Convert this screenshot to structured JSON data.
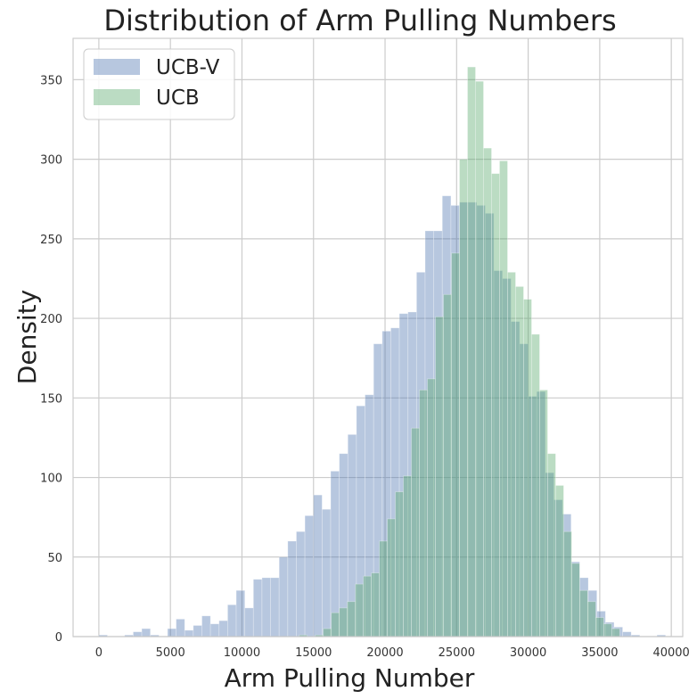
{
  "chart_data": {
    "type": "bar",
    "title": "Distribution of Arm Pulling Numbers",
    "xlabel": "Arm Pulling Number",
    "ylabel": "Density",
    "xlim": [
      -1800,
      40800
    ],
    "ylim": [
      0,
      376
    ],
    "x_ticks": [
      0,
      5000,
      10000,
      15000,
      20000,
      25000,
      30000,
      35000,
      40000
    ],
    "x_tick_labels": [
      "0",
      "5000",
      "10000",
      "15000",
      "20000",
      "25000",
      "30000",
      "35000",
      "40000"
    ],
    "y_ticks": [
      0,
      50,
      100,
      150,
      200,
      250,
      300,
      350
    ],
    "y_tick_labels": [
      "0",
      "50",
      "100",
      "150",
      "200",
      "250",
      "300",
      "350"
    ],
    "grid": true,
    "legend_position": "top-left",
    "series": [
      {
        "name": "UCB-V",
        "color": "#4c72b0",
        "alpha": 0.4,
        "bin_width": 600,
        "bins": [
          [
            0,
            1
          ],
          [
            600,
            0
          ],
          [
            1200,
            0
          ],
          [
            1800,
            1
          ],
          [
            2400,
            3
          ],
          [
            3000,
            5
          ],
          [
            3600,
            1
          ],
          [
            4200,
            0
          ],
          [
            4800,
            5
          ],
          [
            5400,
            11
          ],
          [
            6000,
            4
          ],
          [
            6600,
            7
          ],
          [
            7200,
            13
          ],
          [
            7800,
            8
          ],
          [
            8400,
            10
          ],
          [
            9000,
            20
          ],
          [
            9600,
            29
          ],
          [
            10200,
            18
          ],
          [
            10800,
            36
          ],
          [
            11400,
            37
          ],
          [
            12000,
            37
          ],
          [
            12600,
            50
          ],
          [
            13200,
            60
          ],
          [
            13800,
            66
          ],
          [
            14400,
            76
          ],
          [
            15000,
            89
          ],
          [
            15600,
            80
          ],
          [
            16200,
            104
          ],
          [
            16800,
            115
          ],
          [
            17400,
            127
          ],
          [
            18000,
            145
          ],
          [
            18600,
            152
          ],
          [
            19200,
            184
          ],
          [
            19800,
            192
          ],
          [
            20400,
            194
          ],
          [
            21000,
            203
          ],
          [
            21600,
            204
          ],
          [
            22200,
            229
          ],
          [
            22800,
            255
          ],
          [
            23400,
            255
          ],
          [
            24000,
            277
          ],
          [
            24600,
            271
          ],
          [
            25200,
            273
          ],
          [
            25800,
            273
          ],
          [
            26400,
            271
          ],
          [
            27000,
            266
          ],
          [
            27600,
            230
          ],
          [
            28200,
            225
          ],
          [
            28800,
            198
          ],
          [
            29400,
            184
          ],
          [
            30000,
            151
          ],
          [
            30600,
            154
          ],
          [
            31200,
            103
          ],
          [
            31800,
            86
          ],
          [
            32400,
            77
          ],
          [
            33000,
            47
          ],
          [
            33600,
            37
          ],
          [
            34200,
            29
          ],
          [
            34800,
            16
          ],
          [
            35400,
            9
          ],
          [
            36000,
            6
          ],
          [
            36600,
            3
          ],
          [
            37200,
            1
          ],
          [
            37800,
            0
          ],
          [
            38400,
            0
          ],
          [
            39000,
            1
          ]
        ]
      },
      {
        "name": "UCB",
        "color": "#55a868",
        "alpha": 0.4,
        "bin_width": 560,
        "bins": [
          [
            14000,
            1
          ],
          [
            14560,
            0
          ],
          [
            15120,
            1
          ],
          [
            15680,
            5
          ],
          [
            16240,
            15
          ],
          [
            16800,
            18
          ],
          [
            17360,
            22
          ],
          [
            17920,
            33
          ],
          [
            18480,
            38
          ],
          [
            19040,
            40
          ],
          [
            19600,
            60
          ],
          [
            20160,
            74
          ],
          [
            20720,
            91
          ],
          [
            21280,
            101
          ],
          [
            21840,
            131
          ],
          [
            22400,
            155
          ],
          [
            22960,
            162
          ],
          [
            23520,
            201
          ],
          [
            24080,
            215
          ],
          [
            24640,
            241
          ],
          [
            25200,
            300
          ],
          [
            25760,
            358
          ],
          [
            26320,
            349
          ],
          [
            26880,
            307
          ],
          [
            27440,
            291
          ],
          [
            28000,
            299
          ],
          [
            28560,
            229
          ],
          [
            29120,
            220
          ],
          [
            29680,
            212
          ],
          [
            30240,
            190
          ],
          [
            30800,
            155
          ],
          [
            31360,
            115
          ],
          [
            31920,
            95
          ],
          [
            32480,
            66
          ],
          [
            33040,
            46
          ],
          [
            33600,
            29
          ],
          [
            34160,
            22
          ],
          [
            34720,
            12
          ],
          [
            35280,
            8
          ],
          [
            35840,
            5
          ]
        ]
      }
    ]
  }
}
